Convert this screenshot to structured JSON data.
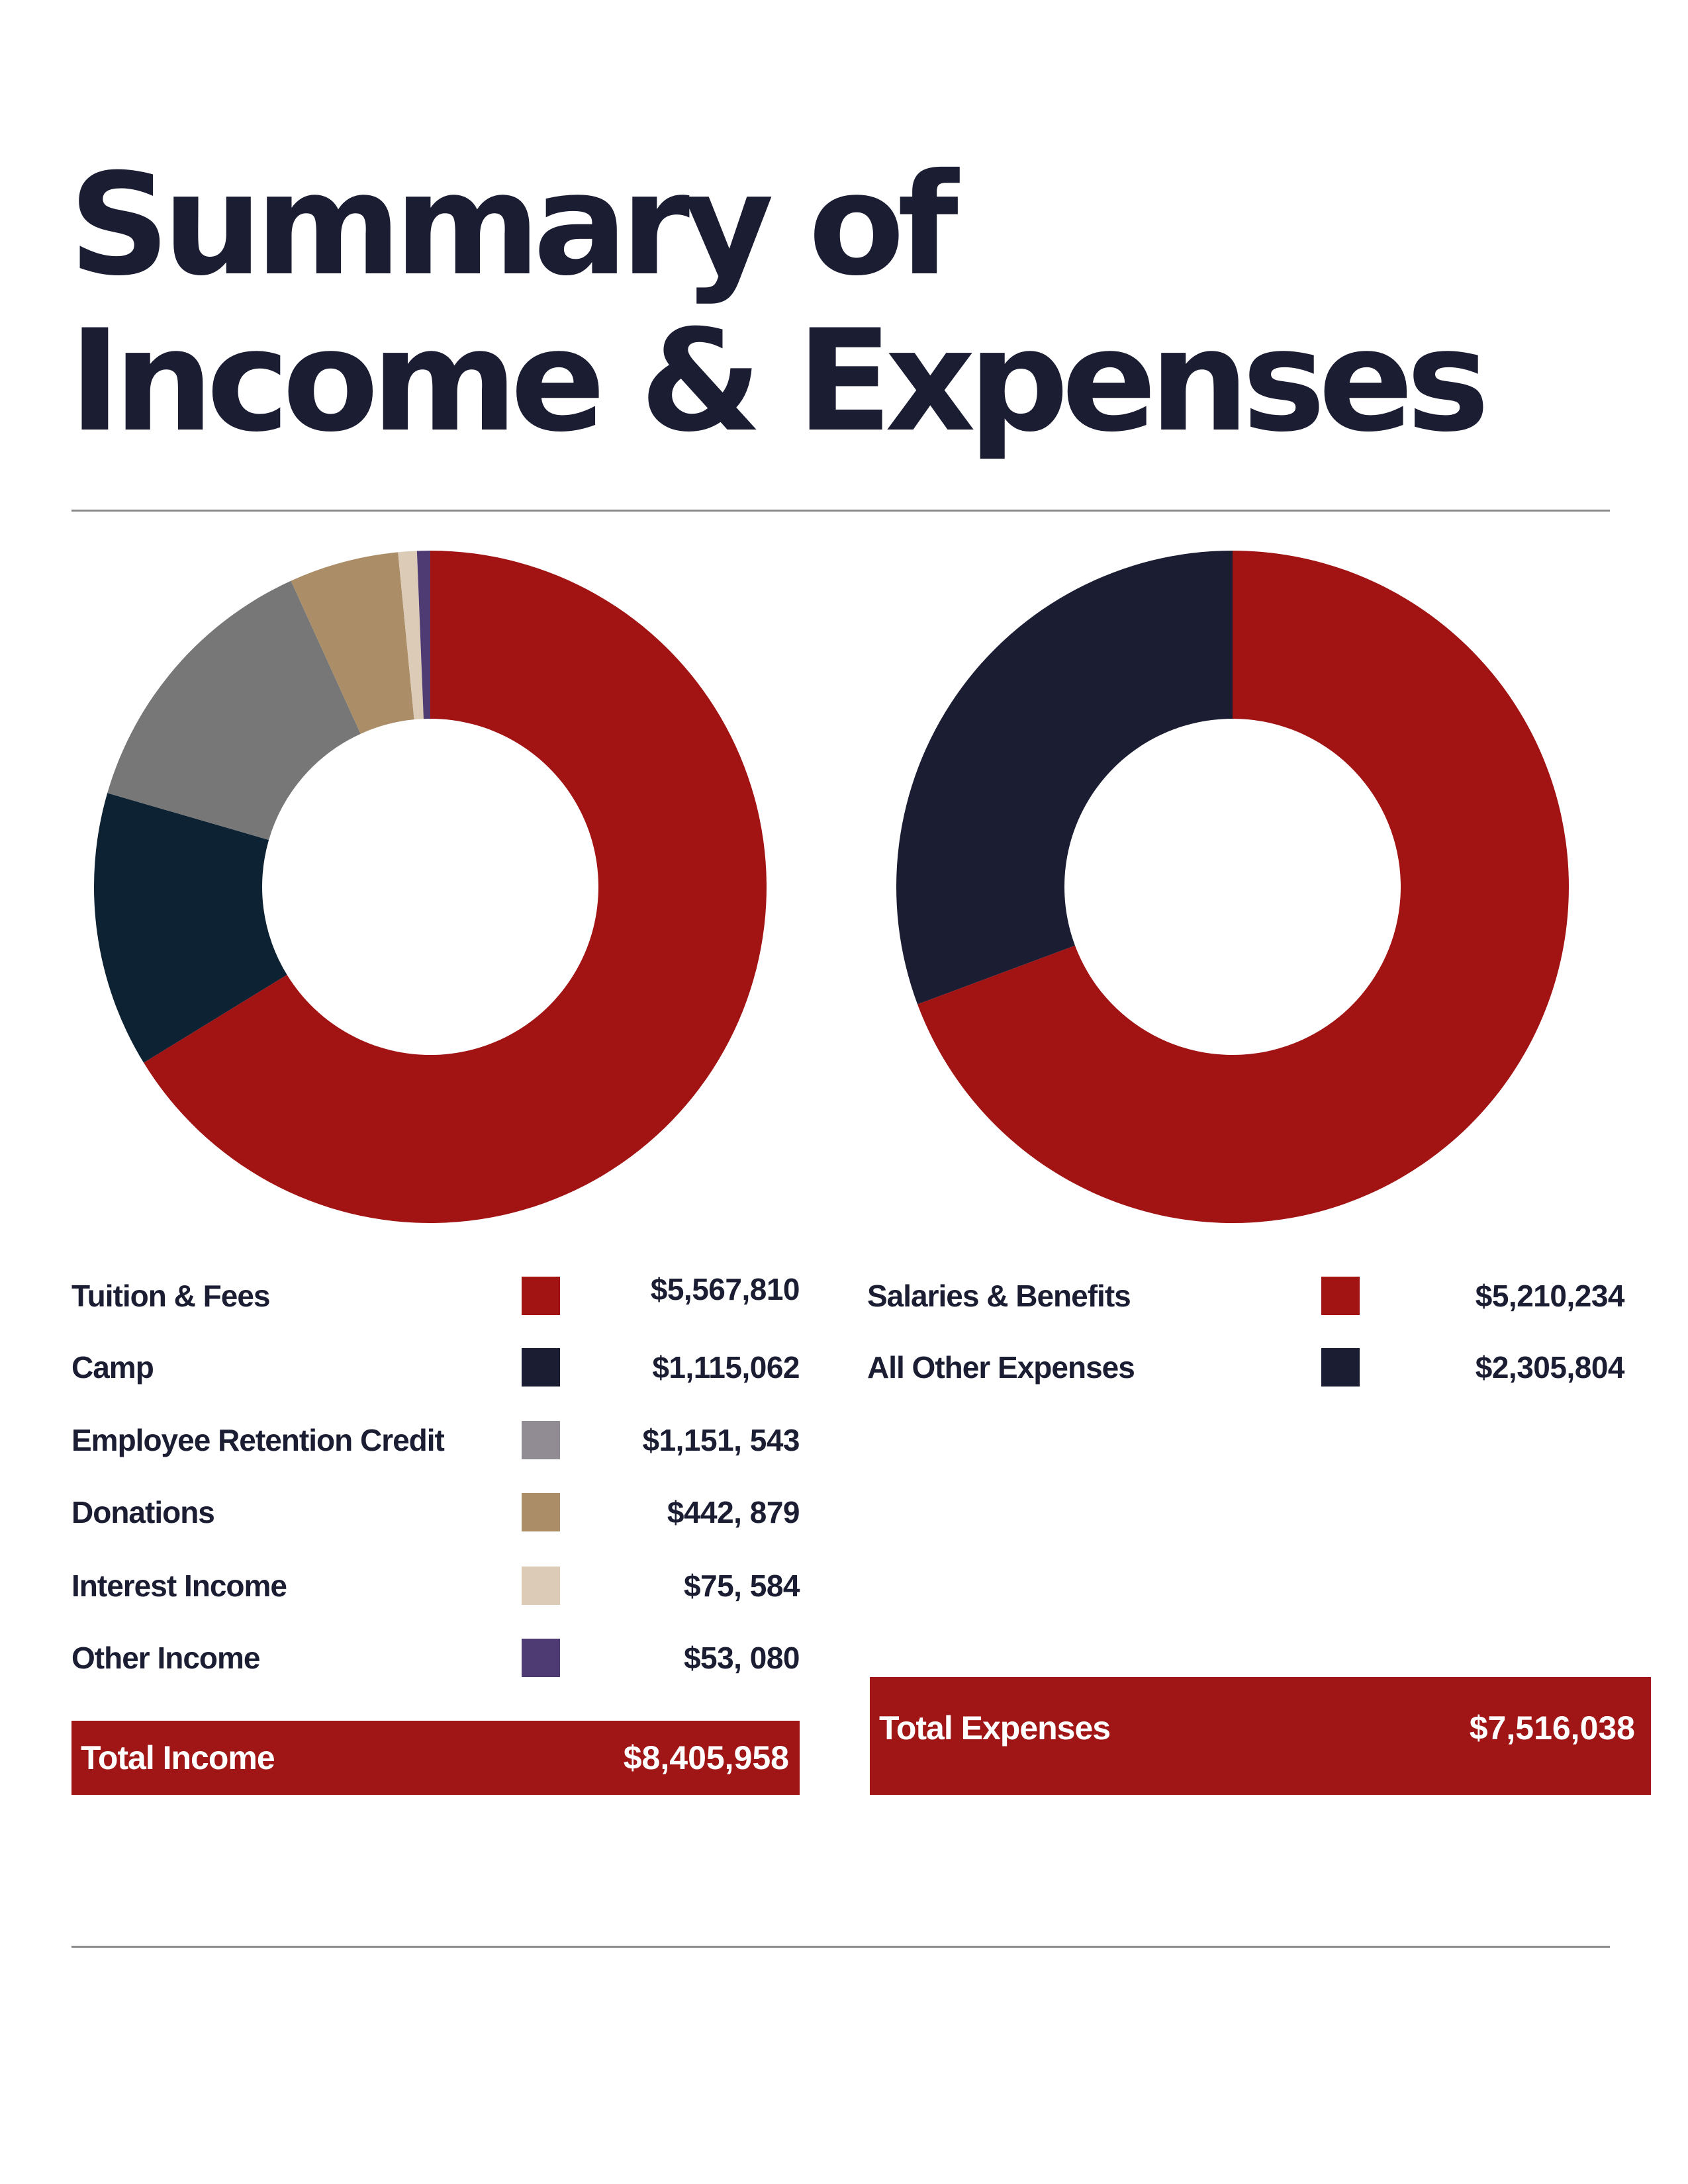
{
  "title": {
    "line1": "Summary of",
    "line2": "Income & Expenses"
  },
  "chart_data": [
    {
      "type": "pie",
      "categories": [
        "Tuition & Fees",
        "Camp",
        "Employee Retention Credit",
        "Donations",
        "Interest Income",
        "Other Income"
      ],
      "values": [
        5567810,
        1115062,
        1151543,
        442879,
        75584,
        53080
      ],
      "value_labels": [
        "$5,567,810",
        "$1,115,062",
        "$1,151, 543",
        "$442, 879",
        "$75, 584",
        "$53, 080"
      ],
      "colors": [
        "#a11413",
        "#0d2233",
        "#777777",
        "#ab8e67",
        "#dccbb7",
        "#4e3b73"
      ],
      "swatch_colors": [
        "#a11413",
        "#1b1d33",
        "#918c93",
        "#ab8e67",
        "#dccbb7",
        "#4e3b73"
      ],
      "donut": true,
      "total_label": "Total Income",
      "total_value": "$8,405,958"
    },
    {
      "type": "pie",
      "categories": [
        "Salaries & Benefits",
        "All Other Expenses"
      ],
      "values": [
        5210234,
        2305804
      ],
      "value_labels": [
        "$5,210,234",
        "$2,305,804"
      ],
      "colors": [
        "#a11413",
        "#1b1d33"
      ],
      "swatch_colors": [
        "#a11413",
        "#1b1d33"
      ],
      "donut": true,
      "total_label": "Total Expenses",
      "total_value": "$7,516,038"
    }
  ]
}
